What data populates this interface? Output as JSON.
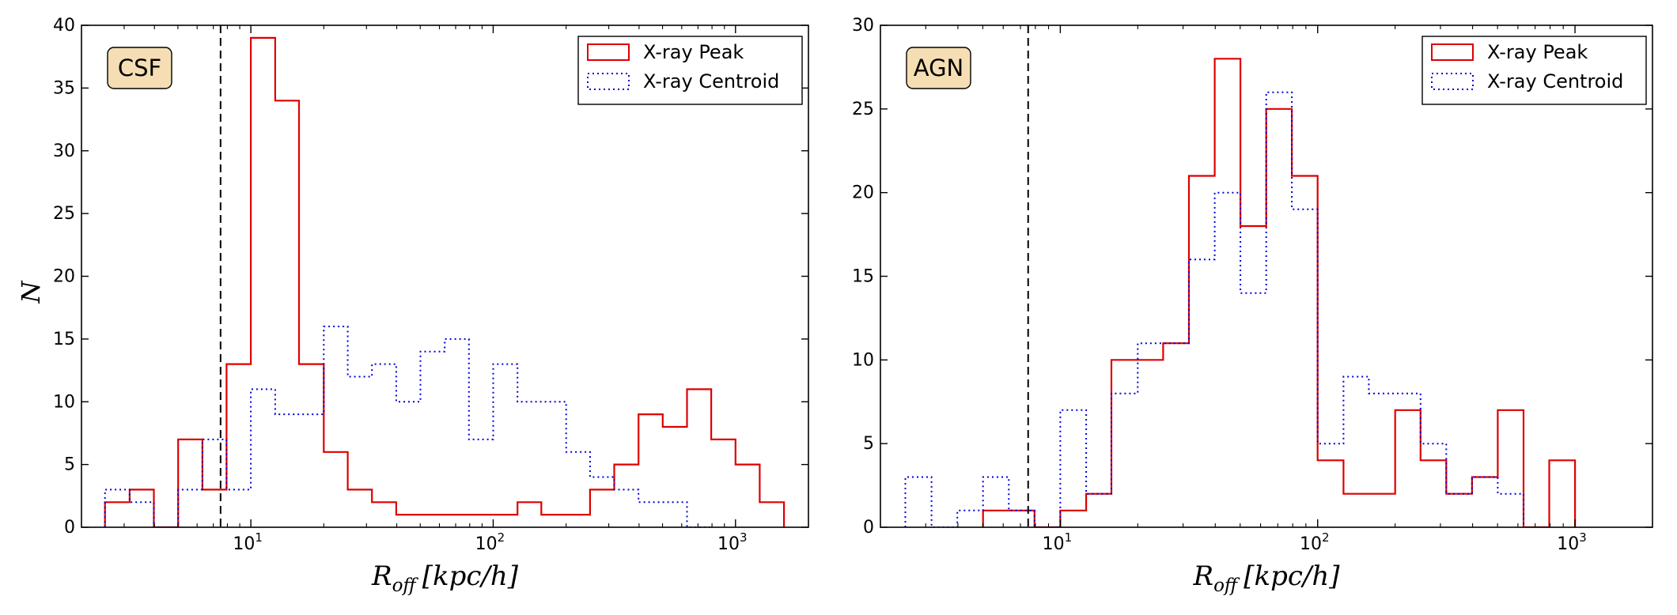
{
  "figure": {
    "panels": [
      {
        "panel_label": "CSF",
        "x_label": "R",
        "x_label_sub": "off",
        "x_label_unit": "[kpc/h]",
        "y_label": "N"
      },
      {
        "panel_label": "AGN",
        "x_label": "R",
        "x_label_sub": "off",
        "x_label_unit": "[kpc/h]",
        "y_label": ""
      }
    ]
  },
  "chart_data": [
    {
      "type": "histogram",
      "title": "",
      "annotation": "CSF",
      "xlabel": "R_off [kpc/h]",
      "ylabel": "N",
      "xscale": "log",
      "xlim": [
        2.0,
        2000.0
      ],
      "ylim": [
        0,
        40
      ],
      "xticks": [
        {
          "value": 10,
          "base": "10",
          "exp": "1"
        },
        {
          "value": 100,
          "base": "10",
          "exp": "2"
        },
        {
          "value": 1000,
          "base": "10",
          "exp": "3"
        }
      ],
      "yticks": [
        0,
        5,
        10,
        15,
        20,
        25,
        30,
        35,
        40
      ],
      "vline": {
        "x": 7.5,
        "style": "dashed",
        "color": "#000000"
      },
      "legend": {
        "position": "top-right"
      },
      "series": [
        {
          "name": "X-ray Peak",
          "style": "solid",
          "color": "#dd0000",
          "bins": [
            {
              "x0": 2.5,
              "x1": 3.16,
              "y": 2
            },
            {
              "x0": 3.16,
              "x1": 3.98,
              "y": 3
            },
            {
              "x0": 3.98,
              "x1": 5.01,
              "y": 0
            },
            {
              "x0": 5.01,
              "x1": 6.31,
              "y": 7
            },
            {
              "x0": 6.31,
              "x1": 7.94,
              "y": 3
            },
            {
              "x0": 7.94,
              "x1": 10.0,
              "y": 13
            },
            {
              "x0": 10.0,
              "x1": 12.6,
              "y": 39
            },
            {
              "x0": 12.6,
              "x1": 15.8,
              "y": 34
            },
            {
              "x0": 15.8,
              "x1": 20.0,
              "y": 13
            },
            {
              "x0": 20.0,
              "x1": 25.1,
              "y": 6
            },
            {
              "x0": 25.1,
              "x1": 31.6,
              "y": 3
            },
            {
              "x0": 31.6,
              "x1": 39.8,
              "y": 2
            },
            {
              "x0": 39.8,
              "x1": 50.1,
              "y": 1
            },
            {
              "x0": 50.1,
              "x1": 63.1,
              "y": 1
            },
            {
              "x0": 63.1,
              "x1": 79.4,
              "y": 1
            },
            {
              "x0": 79.4,
              "x1": 100,
              "y": 1
            },
            {
              "x0": 100,
              "x1": 126,
              "y": 1
            },
            {
              "x0": 126,
              "x1": 158,
              "y": 2
            },
            {
              "x0": 158,
              "x1": 200,
              "y": 1
            },
            {
              "x0": 200,
              "x1": 251,
              "y": 1
            },
            {
              "x0": 251,
              "x1": 316,
              "y": 3
            },
            {
              "x0": 316,
              "x1": 398,
              "y": 5
            },
            {
              "x0": 398,
              "x1": 501,
              "y": 9
            },
            {
              "x0": 501,
              "x1": 631,
              "y": 8
            },
            {
              "x0": 631,
              "x1": 794,
              "y": 11
            },
            {
              "x0": 794,
              "x1": 1000,
              "y": 7
            },
            {
              "x0": 1000,
              "x1": 1259,
              "y": 5
            },
            {
              "x0": 1259,
              "x1": 1585,
              "y": 2
            }
          ]
        },
        {
          "name": "X-ray Centroid",
          "style": "dotted",
          "color": "#0000dd",
          "bins": [
            {
              "x0": 2.5,
              "x1": 3.16,
              "y": 3
            },
            {
              "x0": 3.16,
              "x1": 3.98,
              "y": 2
            },
            {
              "x0": 3.98,
              "x1": 5.01,
              "y": 0
            },
            {
              "x0": 5.01,
              "x1": 6.31,
              "y": 3
            },
            {
              "x0": 6.31,
              "x1": 7.94,
              "y": 7
            },
            {
              "x0": 7.94,
              "x1": 10.0,
              "y": 3
            },
            {
              "x0": 10.0,
              "x1": 12.6,
              "y": 11
            },
            {
              "x0": 12.6,
              "x1": 15.8,
              "y": 9
            },
            {
              "x0": 15.8,
              "x1": 20.0,
              "y": 9
            },
            {
              "x0": 20.0,
              "x1": 25.1,
              "y": 16
            },
            {
              "x0": 25.1,
              "x1": 31.6,
              "y": 12
            },
            {
              "x0": 31.6,
              "x1": 39.8,
              "y": 13
            },
            {
              "x0": 39.8,
              "x1": 50.1,
              "y": 10
            },
            {
              "x0": 50.1,
              "x1": 63.1,
              "y": 14
            },
            {
              "x0": 63.1,
              "x1": 79.4,
              "y": 15
            },
            {
              "x0": 79.4,
              "x1": 100,
              "y": 7
            },
            {
              "x0": 100,
              "x1": 126,
              "y": 13
            },
            {
              "x0": 126,
              "x1": 158,
              "y": 10
            },
            {
              "x0": 158,
              "x1": 200,
              "y": 10
            },
            {
              "x0": 200,
              "x1": 251,
              "y": 6
            },
            {
              "x0": 251,
              "x1": 316,
              "y": 4
            },
            {
              "x0": 316,
              "x1": 398,
              "y": 3
            },
            {
              "x0": 398,
              "x1": 501,
              "y": 2
            },
            {
              "x0": 501,
              "x1": 631,
              "y": 2
            },
            {
              "x0": 631,
              "x1": 794,
              "y": 0
            }
          ]
        }
      ]
    },
    {
      "type": "histogram",
      "title": "",
      "annotation": "AGN",
      "xlabel": "R_off [kpc/h]",
      "ylabel": "",
      "xscale": "log",
      "xlim": [
        2.0,
        2000.0
      ],
      "ylim": [
        0,
        30
      ],
      "xticks": [
        {
          "value": 10,
          "base": "10",
          "exp": "1"
        },
        {
          "value": 100,
          "base": "10",
          "exp": "2"
        },
        {
          "value": 1000,
          "base": "10",
          "exp": "3"
        }
      ],
      "yticks": [
        0,
        5,
        10,
        15,
        20,
        25,
        30
      ],
      "vline": {
        "x": 7.5,
        "style": "dashed",
        "color": "#000000"
      },
      "legend": {
        "position": "top-right"
      },
      "series": [
        {
          "name": "X-ray Peak",
          "style": "solid",
          "color": "#dd0000",
          "bins": [
            {
              "x0": 5.01,
              "x1": 6.31,
              "y": 1
            },
            {
              "x0": 6.31,
              "x1": 7.94,
              "y": 1
            },
            {
              "x0": 7.94,
              "x1": 10.0,
              "y": 0
            },
            {
              "x0": 10.0,
              "x1": 12.6,
              "y": 1
            },
            {
              "x0": 12.6,
              "x1": 15.8,
              "y": 2
            },
            {
              "x0": 15.8,
              "x1": 20.0,
              "y": 10
            },
            {
              "x0": 20.0,
              "x1": 25.1,
              "y": 10
            },
            {
              "x0": 25.1,
              "x1": 31.6,
              "y": 11
            },
            {
              "x0": 31.6,
              "x1": 39.8,
              "y": 21
            },
            {
              "x0": 39.8,
              "x1": 50.1,
              "y": 28
            },
            {
              "x0": 50.1,
              "x1": 63.1,
              "y": 18
            },
            {
              "x0": 63.1,
              "x1": 79.4,
              "y": 25
            },
            {
              "x0": 79.4,
              "x1": 100,
              "y": 21
            },
            {
              "x0": 100,
              "x1": 126,
              "y": 4
            },
            {
              "x0": 126,
              "x1": 158,
              "y": 2
            },
            {
              "x0": 158,
              "x1": 200,
              "y": 2
            },
            {
              "x0": 200,
              "x1": 251,
              "y": 7
            },
            {
              "x0": 251,
              "x1": 316,
              "y": 4
            },
            {
              "x0": 316,
              "x1": 398,
              "y": 2
            },
            {
              "x0": 398,
              "x1": 501,
              "y": 3
            },
            {
              "x0": 501,
              "x1": 631,
              "y": 7
            },
            {
              "x0": 631,
              "x1": 794,
              "y": 0
            },
            {
              "x0": 794,
              "x1": 1000,
              "y": 4
            }
          ]
        },
        {
          "name": "X-ray Centroid",
          "style": "dotted",
          "color": "#0000dd",
          "bins": [
            {
              "x0": 2.5,
              "x1": 3.16,
              "y": 3
            },
            {
              "x0": 3.16,
              "x1": 3.98,
              "y": 0
            },
            {
              "x0": 3.98,
              "x1": 5.01,
              "y": 1
            },
            {
              "x0": 5.01,
              "x1": 6.31,
              "y": 3
            },
            {
              "x0": 6.31,
              "x1": 7.94,
              "y": 1
            },
            {
              "x0": 7.94,
              "x1": 10.0,
              "y": 0
            },
            {
              "x0": 10.0,
              "x1": 12.6,
              "y": 7
            },
            {
              "x0": 12.6,
              "x1": 15.8,
              "y": 2
            },
            {
              "x0": 15.8,
              "x1": 20.0,
              "y": 8
            },
            {
              "x0": 20.0,
              "x1": 25.1,
              "y": 11
            },
            {
              "x0": 25.1,
              "x1": 31.6,
              "y": 11
            },
            {
              "x0": 31.6,
              "x1": 39.8,
              "y": 16
            },
            {
              "x0": 39.8,
              "x1": 50.1,
              "y": 20
            },
            {
              "x0": 50.1,
              "x1": 63.1,
              "y": 14
            },
            {
              "x0": 63.1,
              "x1": 79.4,
              "y": 26
            },
            {
              "x0": 79.4,
              "x1": 100,
              "y": 19
            },
            {
              "x0": 100,
              "x1": 126,
              "y": 5
            },
            {
              "x0": 126,
              "x1": 158,
              "y": 9
            },
            {
              "x0": 158,
              "x1": 200,
              "y": 8
            },
            {
              "x0": 200,
              "x1": 251,
              "y": 8
            },
            {
              "x0": 251,
              "x1": 316,
              "y": 5
            },
            {
              "x0": 316,
              "x1": 398,
              "y": 2
            },
            {
              "x0": 398,
              "x1": 501,
              "y": 3
            },
            {
              "x0": 501,
              "x1": 631,
              "y": 2
            }
          ]
        }
      ]
    }
  ]
}
